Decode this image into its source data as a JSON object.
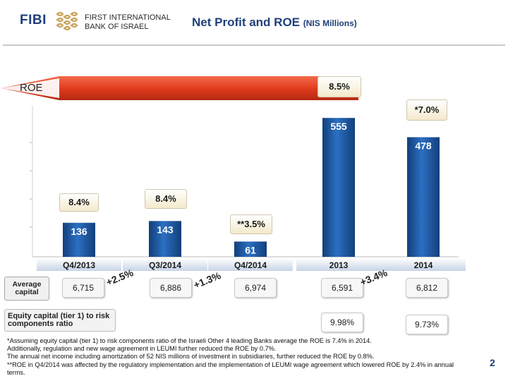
{
  "header": {
    "logo_word": "FIBI",
    "bank_line1": "FIRST INTERNATIONAL",
    "bank_line2": "BANK OF ISRAEL",
    "title_main": "Net Profit and ROE",
    "title_sub": "(NIS Millions)"
  },
  "roe_label": "ROE",
  "colors": {
    "bar": "#1f5fad",
    "bar_dark": "#123f7a",
    "accent": "#e23c1e",
    "brand": "#1f3f7a"
  },
  "chart_data": {
    "type": "bar",
    "title": "Net Profit and ROE (NIS Millions)",
    "categories": [
      "Q4/2013",
      "Q3/2014",
      "Q4/2014",
      "2013",
      "2014"
    ],
    "values": [
      136,
      143,
      61,
      555,
      478
    ],
    "value_labels": [
      "136",
      "143",
      "61",
      "555",
      "478"
    ],
    "roe": [
      "8.4%",
      "8.4%",
      "**3.5%",
      "8.5%",
      "*7.0%"
    ],
    "ylim": [
      0,
      600
    ],
    "xlabel": "",
    "ylabel": ""
  },
  "average_capital": {
    "label_line1": "Average",
    "label_line2": "capital",
    "values": [
      "6,715",
      "6,886",
      "6,974",
      "6,591",
      "6,812"
    ],
    "growth": [
      "+2.5%",
      "+1.3%",
      "+3.4%"
    ]
  },
  "equity_ratio": {
    "label_line1": "Equity capital (tier 1) to risk",
    "label_line2": "components ratio",
    "values": [
      "9.98%",
      "9.73%"
    ]
  },
  "footnotes": [
    "*Assuming equity capital (tier 1) to risk components ratio of the Israeli Other 4 leading Banks average the ROE is 7.4% in 2014.",
    "Additionally, regulation and new wage agreement in LEUMI further reduced the ROE by 0.7%.",
    "The annual net income including amortization of 52 NIS millions of investment in subsidiaries, further reduced the ROE by 0.8%.",
    "**ROE in Q4/2014 was affected by the regulatory implementation and the implementation of LEUMI wage agreement which lowered  ROE by 2.4% in annual",
    "terms."
  ],
  "page_number": "2"
}
